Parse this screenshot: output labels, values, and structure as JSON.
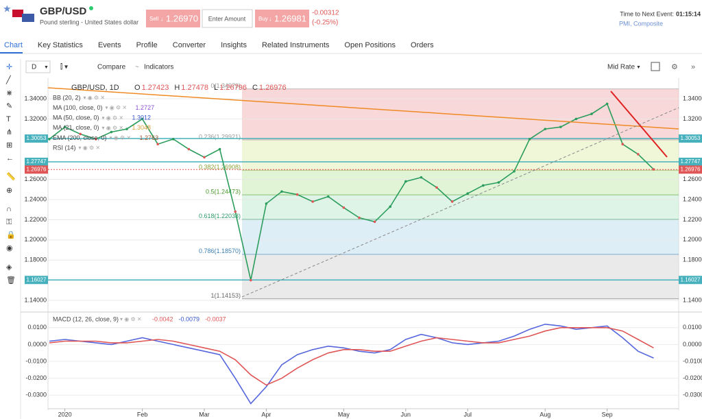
{
  "header": {
    "symbol": "GBP/USD",
    "description": "Pound sterling - United States dollar",
    "sell": {
      "label": "Sell",
      "price": "1.26970"
    },
    "amount_placeholder": "Enter Amount",
    "buy": {
      "label": "Buy",
      "price": "1.26981"
    },
    "change": "-0.00312",
    "change_pct": "(-0.25%)",
    "next_event_label": "Time to Next Event:",
    "next_event_time": "01:15:14",
    "next_event_name": "PMI, Composite"
  },
  "tabs": [
    "Chart",
    "Key Statistics",
    "Events",
    "Profile",
    "Converter",
    "Insights",
    "Related Instruments",
    "Open Positions",
    "Orders"
  ],
  "toolbar": {
    "period": "D",
    "compare": "Compare",
    "indicators": "Indicators",
    "rate": "Mid Rate"
  },
  "chart_data": [
    {
      "type": "line",
      "title": "GBP/USD, 1D",
      "ohlc": [
        {
          "label": "O",
          "value": 1.27423
        },
        {
          "label": "H",
          "value": 1.27478
        },
        {
          "label": "L",
          "value": 1.26796
        },
        {
          "label": "C",
          "value": 1.26976
        }
      ],
      "indicators": [
        {
          "name": "BB (20, 2)",
          "color": "#888888"
        },
        {
          "name": "MA (100, close, 0)",
          "value": 1.2727,
          "color": "#8a4fd6"
        },
        {
          "name": "MA (50, close, 0)",
          "value": 1.3012,
          "color": "#3355cc"
        },
        {
          "name": "MA (21, close, 0)",
          "value": 1.3048,
          "color": "#d9a13b"
        },
        {
          "name": "EMA (200, close, 0)",
          "value": 1.2763,
          "color": "#a0522d"
        },
        {
          "name": "RSI (14)",
          "color": "#888888"
        }
      ],
      "categories": [
        null,
        "2020",
        null,
        null,
        null,
        null,
        "Feb",
        null,
        null,
        null,
        "Mar",
        null,
        null,
        null,
        "Apr",
        null,
        null,
        null,
        null,
        "May",
        null,
        null,
        null,
        "Jun",
        null,
        null,
        null,
        "Jul",
        null,
        null,
        null,
        null,
        "Aug",
        null,
        null,
        null,
        "Sep",
        null,
        null,
        null
      ],
      "values": [
        1.3,
        1.312,
        1.305,
        1.3,
        1.307,
        1.31,
        1.32,
        1.295,
        1.3,
        1.29,
        1.282,
        1.29,
        1.228,
        1.16,
        1.236,
        1.248,
        1.245,
        1.238,
        1.243,
        1.232,
        1.222,
        1.218,
        1.233,
        1.258,
        1.262,
        1.252,
        1.238,
        1.246,
        1.254,
        1.257,
        1.268,
        1.3,
        1.31,
        1.312,
        1.32,
        1.325,
        1.335,
        1.295,
        1.285,
        1.27
      ],
      "color": "#2a9d5c",
      "ylim": [
        1.1305,
        1.3577
      ],
      "yticks": [
        {
          "value": 1.34,
          "label": "1.34000"
        },
        {
          "value": 1.32,
          "label": "1.32000"
        },
        {
          "value": 1.26,
          "label": "1.26000"
        },
        {
          "value": 1.24,
          "label": "1.24000"
        },
        {
          "value": 1.22,
          "label": "1.22000"
        },
        {
          "value": 1.2,
          "label": "1.20000"
        },
        {
          "value": 1.18,
          "label": "1.18000"
        },
        {
          "value": 1.14,
          "label": "1.14000"
        }
      ],
      "price_levels": [
        {
          "value": 1.30053,
          "color": "#46b1bd"
        },
        {
          "value": 1.27747,
          "color": "#46b1bd"
        },
        {
          "value": 1.26976,
          "color": "#e05555"
        },
        {
          "value": 1.16027,
          "color": "#46b1bd"
        }
      ],
      "fib_levels": [
        {
          "value": 1.34979,
          "label": "0(1.34979)"
        },
        {
          "value": 1.29921,
          "label": "0.236(1.29921)"
        },
        {
          "value": 1.26908,
          "label": "0.382(1.26908)"
        },
        {
          "value": 1.24473,
          "label": "0.5(1.24473)"
        },
        {
          "value": 1.22038,
          "label": "0.618(1.22038)"
        },
        {
          "value": 1.1857,
          "label": "0.786(1.18570)"
        },
        {
          "value": 1.14153,
          "label": "1(1.14153)"
        }
      ],
      "fib_colors": [
        "#f3b8b8",
        "#e4efb8",
        "#c9ebb4",
        "#c2ebd2",
        "#c3e0f0",
        "#d9d9d9"
      ],
      "fib_text_colors": [
        "#999999",
        "#999999",
        "#8aa23a",
        "#4e9a2e",
        "#2e9a6a",
        "#3a7fb0",
        "#666666"
      ]
    },
    {
      "type": "line",
      "title": "MACD (12, 26, close, 9)",
      "readings": [
        {
          "value": -0.0042,
          "color": "#e05555"
        },
        {
          "value": -0.0079,
          "color": "#3355cc"
        },
        {
          "value": -0.0037,
          "color": "#e05555"
        }
      ],
      "series": [
        {
          "color": "#5566dd",
          "values": [
            0.002,
            0.003,
            0.002,
            0.001,
            0.0,
            0.002,
            0.004,
            0.002,
            0.0,
            -0.002,
            -0.004,
            -0.006,
            -0.02,
            -0.035,
            -0.025,
            -0.012,
            -0.006,
            -0.003,
            -0.001,
            -0.002,
            -0.004,
            -0.005,
            -0.003,
            0.003,
            0.006,
            0.004,
            0.001,
            0.0,
            0.001,
            0.002,
            0.005,
            0.009,
            0.012,
            0.011,
            0.009,
            0.01,
            0.011,
            0.004,
            -0.004,
            -0.008
          ]
        },
        {
          "color": "#e05555",
          "values": [
            0.001,
            0.002,
            0.002,
            0.002,
            0.001,
            0.001,
            0.002,
            0.003,
            0.002,
            0.0,
            -0.002,
            -0.004,
            -0.009,
            -0.018,
            -0.024,
            -0.02,
            -0.014,
            -0.009,
            -0.005,
            -0.003,
            -0.003,
            -0.004,
            -0.004,
            -0.001,
            0.002,
            0.004,
            0.003,
            0.002,
            0.001,
            0.001,
            0.003,
            0.005,
            0.008,
            0.01,
            0.01,
            0.01,
            0.01,
            0.008,
            0.003,
            -0.002
          ]
        }
      ],
      "ylim": [
        -0.0364,
        0.0164
      ],
      "yticks": [
        {
          "value": 0.01,
          "label": "0.0100"
        },
        {
          "value": 0,
          "label": "0.0000"
        },
        {
          "value": -0.01,
          "label": "-0.0100"
        },
        {
          "value": -0.02,
          "label": "-0.0200"
        },
        {
          "value": -0.03,
          "label": "-0.0300"
        }
      ]
    }
  ]
}
